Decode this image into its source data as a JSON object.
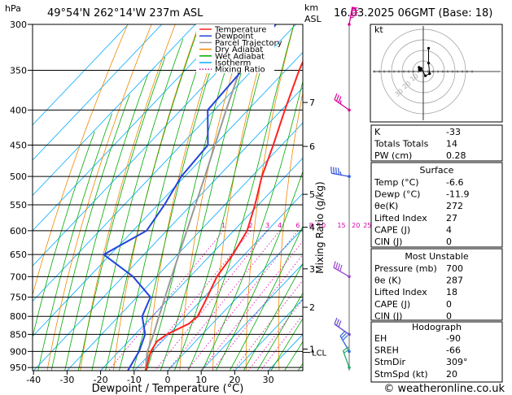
{
  "header": {
    "hpa_label": "hPa",
    "location": "49°54'N 262°14'W 237m ASL",
    "km_label": "km",
    "asl_label": "ASL",
    "datetime": "16.03.2025 06GMT (Base: 18)"
  },
  "chart_data": {
    "type": "skewt",
    "xlabel": "Dewpoint / Temperature (°C)",
    "ylabel_right": "Mixing Ratio (g/kg)",
    "x_ticks": [
      -40,
      -30,
      -20,
      -10,
      0,
      10,
      20,
      30
    ],
    "pressure_levels": [
      300,
      350,
      400,
      450,
      500,
      550,
      600,
      650,
      700,
      750,
      800,
      850,
      900,
      950
    ],
    "height_km_ticks": [
      {
        "label": "7",
        "p": 390
      },
      {
        "label": "6",
        "p": 452
      },
      {
        "label": "5",
        "p": 531
      },
      {
        "label": "4",
        "p": 593
      },
      {
        "label": "3",
        "p": 682
      },
      {
        "label": "2",
        "p": 776
      },
      {
        "label": "1",
        "p": 893
      }
    ],
    "lcl_label": "LCL",
    "lcl_p": 903,
    "mixing_ratio_labels": [
      "1",
      "2",
      "3",
      "4",
      "6",
      "8",
      "10",
      "15",
      "20",
      "25"
    ],
    "mixing_ratio_values": [
      1,
      2,
      3,
      4,
      6,
      8,
      10,
      15,
      20,
      25
    ],
    "legend": [
      {
        "label": "Temperature",
        "color": "#ff2222"
      },
      {
        "label": "Dewpoint",
        "color": "#2244dd"
      },
      {
        "label": "Parcel Trajectory",
        "color": "#999999"
      },
      {
        "label": "Dry Adiabat",
        "color": "#ee8800"
      },
      {
        "label": "Wet Adiabat",
        "color": "#00aa00"
      },
      {
        "label": "Isotherm",
        "color": "#00aaff"
      },
      {
        "label": "Mixing Ratio",
        "color": "#dd00aa"
      }
    ],
    "temperature_profile": [
      {
        "p": 960,
        "t": -6.6
      },
      {
        "p": 930,
        "t": -8.5
      },
      {
        "p": 900,
        "t": -10.5
      },
      {
        "p": 870,
        "t": -11.5
      },
      {
        "p": 850,
        "t": -10.5
      },
      {
        "p": 820,
        "t": -7.0
      },
      {
        "p": 800,
        "t": -6.5
      },
      {
        "p": 760,
        "t": -8.5
      },
      {
        "p": 700,
        "t": -12.0
      },
      {
        "p": 650,
        "t": -13.5
      },
      {
        "p": 600,
        "t": -16.0
      },
      {
        "p": 550,
        "t": -21.0
      },
      {
        "p": 500,
        "t": -27.0
      },
      {
        "p": 450,
        "t": -32.5
      },
      {
        "p": 400,
        "t": -39.0
      },
      {
        "p": 350,
        "t": -46.0
      },
      {
        "p": 300,
        "t": -53.0
      }
    ],
    "dewpoint_profile": [
      {
        "p": 960,
        "t": -11.9
      },
      {
        "p": 900,
        "t": -14.0
      },
      {
        "p": 850,
        "t": -17.0
      },
      {
        "p": 800,
        "t": -23.0
      },
      {
        "p": 750,
        "t": -26.0
      },
      {
        "p": 700,
        "t": -37.0
      },
      {
        "p": 650,
        "t": -52.0
      },
      {
        "p": 600,
        "t": -46.0
      },
      {
        "p": 550,
        "t": -48.0
      },
      {
        "p": 500,
        "t": -51.0
      },
      {
        "p": 450,
        "t": -52.0
      },
      {
        "p": 400,
        "t": -62.0
      },
      {
        "p": 350,
        "t": -63.0
      },
      {
        "p": 300,
        "t": -66.0
      }
    ],
    "parcel_profile": [
      {
        "p": 960,
        "t": -6.6
      },
      {
        "p": 903,
        "t": -11.3
      },
      {
        "p": 850,
        "t": -14.5
      },
      {
        "p": 800,
        "t": -18.0
      },
      {
        "p": 700,
        "t": -25.5
      },
      {
        "p": 600,
        "t": -34.0
      },
      {
        "p": 500,
        "t": -44.0
      },
      {
        "p": 400,
        "t": -56.5
      },
      {
        "p": 300,
        "t": -72.0
      }
    ]
  },
  "stats": {
    "rows": [
      {
        "label": "K",
        "value": "-33"
      },
      {
        "label": "Totals Totals",
        "value": "14"
      },
      {
        "label": "PW (cm)",
        "value": "0.28"
      }
    ],
    "surface_title": "Surface",
    "surface_rows": [
      {
        "label": "Temp (°C)",
        "value": "-6.6"
      },
      {
        "label": "Dewp (°C)",
        "value": "-11.9"
      },
      {
        "label": "θe(K)",
        "value": "272"
      },
      {
        "label": "Lifted Index",
        "value": "27"
      },
      {
        "label": "CAPE (J)",
        "value": "4"
      },
      {
        "label": "CIN (J)",
        "value": "0"
      }
    ],
    "mu_title": "Most Unstable",
    "mu_rows": [
      {
        "label": "Pressure (mb)",
        "value": "700"
      },
      {
        "label": "θe (K)",
        "value": "287"
      },
      {
        "label": "Lifted Index",
        "value": "18"
      },
      {
        "label": "CAPE (J)",
        "value": "0"
      },
      {
        "label": "CIN (J)",
        "value": "0"
      }
    ],
    "hodo_title": "Hodograph",
    "hodo_rows": [
      {
        "label": "EH",
        "value": "-90"
      },
      {
        "label": "SREH",
        "value": "-66"
      },
      {
        "label": "StmDir",
        "value": "309°"
      },
      {
        "label": "StmSpd (kt)",
        "value": "20"
      }
    ]
  },
  "hodograph": {
    "unit_label": "kt",
    "ring_labels": [
      "10",
      "20",
      "30"
    ],
    "trace_kt": [
      {
        "u": -4,
        "v": 4
      },
      {
        "u": -2,
        "v": 3
      },
      {
        "u": 2,
        "v": -4
      },
      {
        "u": 6,
        "v": -2
      },
      {
        "u": 5,
        "v": 8
      },
      {
        "u": 5,
        "v": 22
      }
    ],
    "storm_kt": {
      "u": -3,
      "v": 2
    }
  },
  "wind_barbs": [
    {
      "p": 300,
      "dir": 10,
      "spd": 85,
      "color": "#dd0099"
    },
    {
      "p": 400,
      "dir": 305,
      "spd": 35,
      "color": "#dd0099"
    },
    {
      "p": 500,
      "dir": 280,
      "spd": 45,
      "color": "#3355dd"
    },
    {
      "p": 700,
      "dir": 300,
      "spd": 40,
      "color": "#9944cc"
    },
    {
      "p": 850,
      "dir": 305,
      "spd": 30,
      "color": "#6644cc"
    },
    {
      "p": 900,
      "dir": 330,
      "spd": 30,
      "color": "#3366dd"
    },
    {
      "p": 950,
      "dir": 340,
      "spd": 20,
      "color": "#22aa66"
    }
  ],
  "footer": {
    "copyright": "© weatheronline.co.uk"
  },
  "colors": {
    "temperature": "#ff2222",
    "dewpoint": "#2244dd",
    "parcel": "#999999",
    "dry_adiabat": "#ee8800",
    "wet_adiabat": "#00aa00",
    "isotherm": "#00aaff",
    "mixing_ratio": "#dd00aa"
  }
}
